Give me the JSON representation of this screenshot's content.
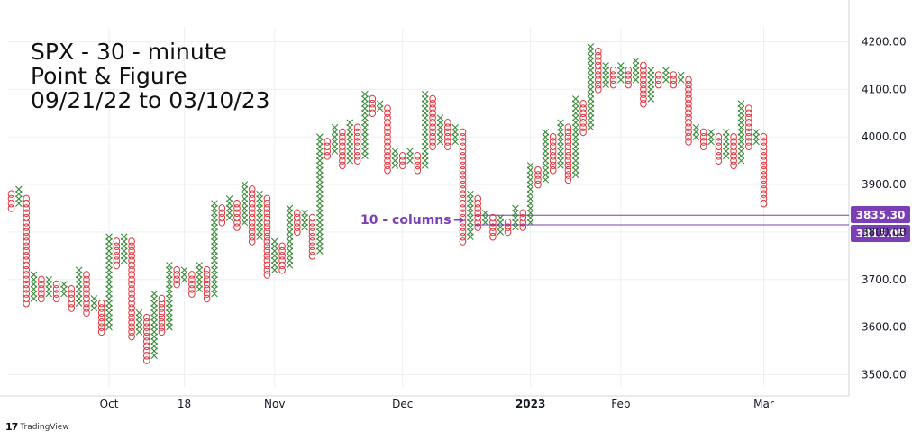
{
  "title_lines": [
    "SPX - 30 - minute",
    "Point & Figure",
    "09/21/22 to 03/10/23"
  ],
  "brand": "TradingView",
  "brand_icon": "tradingview-logo-icon",
  "colors": {
    "x_mark": "#3a8a3a",
    "o_mark": "#e0343c",
    "grid": "#eef0f3",
    "accent": "#7b3fb5",
    "annotation_arrow": "#7b3fb5"
  },
  "chart_data": {
    "type": "point-and-figure",
    "title": "SPX - 30 - minute Point & Figure 09/21/22 to 03/10/23",
    "box_size": 10,
    "reversal": 3,
    "ylim": [
      3470,
      4220
    ],
    "yticks": [
      3500,
      3600,
      3700,
      3800,
      3900,
      4000,
      4100,
      4200
    ],
    "ytick_labels": [
      "3500.00",
      "3600.00",
      "3700.00",
      "3800.00",
      "3900.00",
      "4000.00",
      "4100.00",
      "4200.00"
    ],
    "xticks": [
      {
        "label": "Oct",
        "col": 13,
        "bold": false
      },
      {
        "label": "18",
        "col": 23,
        "bold": false
      },
      {
        "label": "Nov",
        "col": 35,
        "bold": false
      },
      {
        "label": "Dec",
        "col": 52,
        "bold": false
      },
      {
        "label": "2023",
        "col": 69,
        "bold": true
      },
      {
        "label": "Feb",
        "col": 81,
        "bold": false
      },
      {
        "label": "Mar",
        "col": 100,
        "bold": false
      }
    ],
    "grid": true,
    "columns": [
      [
        "O",
        3880,
        3850
      ],
      [
        "X",
        3860,
        3890
      ],
      [
        "O",
        3870,
        3650
      ],
      [
        "X",
        3660,
        3710
      ],
      [
        "O",
        3700,
        3660
      ],
      [
        "X",
        3670,
        3700
      ],
      [
        "O",
        3690,
        3660
      ],
      [
        "X",
        3670,
        3690
      ],
      [
        "O",
        3680,
        3640
      ],
      [
        "X",
        3650,
        3720
      ],
      [
        "O",
        3710,
        3630
      ],
      [
        "X",
        3640,
        3660
      ],
      [
        "O",
        3650,
        3590
      ],
      [
        "X",
        3600,
        3790
      ],
      [
        "O",
        3780,
        3730
      ],
      [
        "X",
        3740,
        3790
      ],
      [
        "O",
        3780,
        3580
      ],
      [
        "X",
        3590,
        3630
      ],
      [
        "O",
        3620,
        3530
      ],
      [
        "X",
        3540,
        3670
      ],
      [
        "O",
        3660,
        3590
      ],
      [
        "X",
        3600,
        3730
      ],
      [
        "O",
        3720,
        3690
      ],
      [
        "X",
        3700,
        3720
      ],
      [
        "O",
        3710,
        3670
      ],
      [
        "X",
        3680,
        3730
      ],
      [
        "O",
        3720,
        3660
      ],
      [
        "X",
        3670,
        3860
      ],
      [
        "O",
        3850,
        3820
      ],
      [
        "X",
        3830,
        3870
      ],
      [
        "O",
        3860,
        3810
      ],
      [
        "X",
        3820,
        3900
      ],
      [
        "O",
        3890,
        3780
      ],
      [
        "X",
        3790,
        3880
      ],
      [
        "O",
        3870,
        3710
      ],
      [
        "X",
        3720,
        3780
      ],
      [
        "O",
        3770,
        3720
      ],
      [
        "X",
        3730,
        3850
      ],
      [
        "O",
        3840,
        3800
      ],
      [
        "X",
        3810,
        3840
      ],
      [
        "O",
        3830,
        3750
      ],
      [
        "X",
        3760,
        4000
      ],
      [
        "O",
        3990,
        3960
      ],
      [
        "X",
        3970,
        4020
      ],
      [
        "O",
        4010,
        3940
      ],
      [
        "X",
        3950,
        4030
      ],
      [
        "O",
        4020,
        3950
      ],
      [
        "X",
        3960,
        4090
      ],
      [
        "O",
        4080,
        4050
      ],
      [
        "X",
        4060,
        4070
      ],
      [
        "O",
        4060,
        3930
      ],
      [
        "X",
        3940,
        3970
      ],
      [
        "O",
        3960,
        3940
      ],
      [
        "X",
        3950,
        3970
      ],
      [
        "O",
        3960,
        3930
      ],
      [
        "X",
        3940,
        4090
      ],
      [
        "O",
        4080,
        3980
      ],
      [
        "X",
        3990,
        4040
      ],
      [
        "O",
        4030,
        3980
      ],
      [
        "X",
        3990,
        4020
      ],
      [
        "O",
        4010,
        3780
      ],
      [
        "X",
        3790,
        3880
      ],
      [
        "O",
        3870,
        3810
      ],
      [
        "X",
        3820,
        3840
      ],
      [
        "O",
        3830,
        3790
      ],
      [
        "X",
        3800,
        3830
      ],
      [
        "O",
        3820,
        3800
      ],
      [
        "X",
        3810,
        3850
      ],
      [
        "O",
        3840,
        3810
      ],
      [
        "X",
        3820,
        3940
      ],
      [
        "O",
        3930,
        3900
      ],
      [
        "X",
        3910,
        4010
      ],
      [
        "O",
        4000,
        3930
      ],
      [
        "X",
        3940,
        4030
      ],
      [
        "O",
        4020,
        3910
      ],
      [
        "X",
        3920,
        4080
      ],
      [
        "O",
        4070,
        4010
      ],
      [
        "X",
        4020,
        4190
      ],
      [
        "O",
        4180,
        4100
      ],
      [
        "X",
        4110,
        4150
      ],
      [
        "O",
        4140,
        4110
      ],
      [
        "X",
        4120,
        4150
      ],
      [
        "O",
        4140,
        4110
      ],
      [
        "X",
        4120,
        4160
      ],
      [
        "O",
        4150,
        4070
      ],
      [
        "X",
        4080,
        4140
      ],
      [
        "O",
        4130,
        4110
      ],
      [
        "X",
        4120,
        4140
      ],
      [
        "O",
        4130,
        4110
      ],
      [
        "X",
        4120,
        4130
      ],
      [
        "O",
        4120,
        3990
      ],
      [
        "X",
        4000,
        4020
      ],
      [
        "O",
        4010,
        3980
      ],
      [
        "X",
        3990,
        4010
      ],
      [
        "O",
        4000,
        3950
      ],
      [
        "X",
        3960,
        4010
      ],
      [
        "O",
        4000,
        3940
      ],
      [
        "X",
        3950,
        4070
      ],
      [
        "O",
        4060,
        3980
      ],
      [
        "X",
        3990,
        4010
      ],
      [
        "O",
        4000,
        3860
      ]
    ],
    "levels": [
      {
        "value": 3835.3,
        "label": "3835.30"
      },
      {
        "value": 3815.05,
        "label": "3815.05"
      }
    ],
    "annotation": {
      "text": "10 - columns",
      "arrow": "→"
    }
  }
}
